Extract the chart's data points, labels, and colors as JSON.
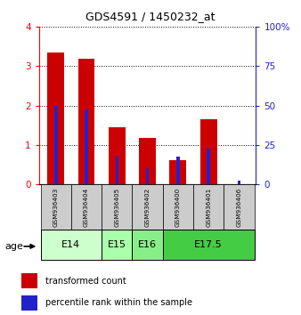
{
  "title": "GDS4591 / 1450232_at",
  "samples": [
    "GSM936403",
    "GSM936404",
    "GSM936405",
    "GSM936402",
    "GSM936400",
    "GSM936401",
    "GSM936406"
  ],
  "transformed_count": [
    3.35,
    3.18,
    1.45,
    1.18,
    0.62,
    1.65,
    0.0
  ],
  "percentile_rank": [
    50.0,
    47.5,
    17.5,
    10.0,
    17.5,
    22.5,
    2.5
  ],
  "age_groups": [
    {
      "label": "E14",
      "samples": [
        0,
        1
      ],
      "color": "#ccffcc"
    },
    {
      "label": "E15",
      "samples": [
        2
      ],
      "color": "#aaffaa"
    },
    {
      "label": "E16",
      "samples": [
        3
      ],
      "color": "#88ee88"
    },
    {
      "label": "E17.5",
      "samples": [
        4,
        5,
        6
      ],
      "color": "#44cc44"
    }
  ],
  "ylim_left": [
    0,
    4
  ],
  "ylim_right": [
    0,
    100
  ],
  "yticks_left": [
    0,
    1,
    2,
    3,
    4
  ],
  "yticks_right": [
    0,
    25,
    50,
    75,
    100
  ],
  "bar_color_red": "#cc0000",
  "bar_color_blue": "#2222cc",
  "bg_color": "#ffffff",
  "sample_box_color": "#cccccc",
  "legend_red": "transformed count",
  "legend_blue": "percentile rank within the sample"
}
